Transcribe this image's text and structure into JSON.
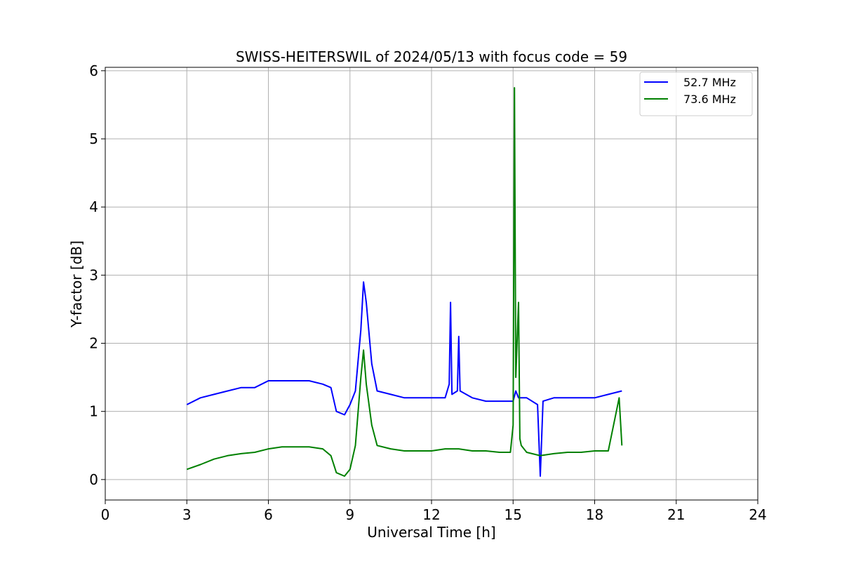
{
  "chart_data": {
    "type": "line",
    "title": "SWISS-HEITERSWIL of 2024/05/13 with focus code = 59",
    "xlabel": "Universal Time [h]",
    "ylabel": "Y-factor [dB]",
    "xlim": [
      0,
      24
    ],
    "ylim": [
      -0.3,
      6.05
    ],
    "xticks": [
      0,
      3,
      6,
      9,
      12,
      15,
      18,
      21,
      24
    ],
    "yticks": [
      0,
      1,
      2,
      3,
      4,
      5,
      6
    ],
    "grid": true,
    "legend_position": "top-right",
    "series": [
      {
        "name": "52.7 MHz",
        "color": "#0000ff",
        "x": [
          3.0,
          3.5,
          4.0,
          4.5,
          5.0,
          5.5,
          6.0,
          6.5,
          7.0,
          7.5,
          8.0,
          8.3,
          8.5,
          8.8,
          9.0,
          9.2,
          9.4,
          9.5,
          9.6,
          9.8,
          10.0,
          10.5,
          11.0,
          11.5,
          12.0,
          12.5,
          12.65,
          12.7,
          12.75,
          12.95,
          13.0,
          13.05,
          13.5,
          14.0,
          14.5,
          15.0,
          15.1,
          15.2,
          15.5,
          15.9,
          16.0,
          16.1,
          16.5,
          17.0,
          17.5,
          18.0,
          18.5,
          19.0
        ],
        "y": [
          1.1,
          1.2,
          1.25,
          1.3,
          1.35,
          1.35,
          1.45,
          1.45,
          1.45,
          1.45,
          1.4,
          1.35,
          1.0,
          0.95,
          1.1,
          1.3,
          2.2,
          2.9,
          2.6,
          1.7,
          1.3,
          1.25,
          1.2,
          1.2,
          1.2,
          1.2,
          1.4,
          2.6,
          1.25,
          1.3,
          2.1,
          1.3,
          1.2,
          1.15,
          1.15,
          1.15,
          1.3,
          1.2,
          1.2,
          1.1,
          0.05,
          1.15,
          1.2,
          1.2,
          1.2,
          1.2,
          1.25,
          1.3
        ]
      },
      {
        "name": "73.6 MHz",
        "color": "#008000",
        "x": [
          3.0,
          3.5,
          4.0,
          4.5,
          5.0,
          5.5,
          6.0,
          6.5,
          7.0,
          7.5,
          8.0,
          8.3,
          8.5,
          8.8,
          9.0,
          9.2,
          9.4,
          9.5,
          9.6,
          9.8,
          10.0,
          10.5,
          11.0,
          11.5,
          12.0,
          12.5,
          13.0,
          13.5,
          14.0,
          14.5,
          14.9,
          15.0,
          15.05,
          15.1,
          15.2,
          15.25,
          15.3,
          15.5,
          16.0,
          16.5,
          17.0,
          17.5,
          18.0,
          18.5,
          18.9,
          19.0
        ],
        "y": [
          0.15,
          0.22,
          0.3,
          0.35,
          0.38,
          0.4,
          0.45,
          0.48,
          0.48,
          0.48,
          0.45,
          0.35,
          0.1,
          0.05,
          0.15,
          0.5,
          1.5,
          1.9,
          1.4,
          0.8,
          0.5,
          0.45,
          0.42,
          0.42,
          0.42,
          0.45,
          0.45,
          0.42,
          0.42,
          0.4,
          0.4,
          0.8,
          5.75,
          1.5,
          2.6,
          0.6,
          0.5,
          0.4,
          0.35,
          0.38,
          0.4,
          0.4,
          0.42,
          0.42,
          1.2,
          0.5
        ]
      }
    ]
  }
}
